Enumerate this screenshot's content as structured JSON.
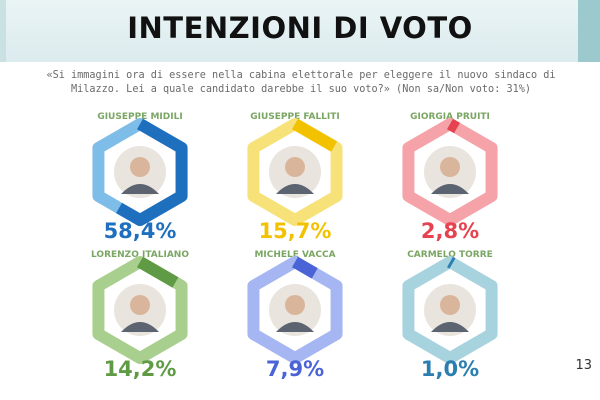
{
  "slide": {
    "title": "INTENZIONI DI VOTO",
    "question": "«Si immagini ora di essere nella cabina elettorale per eleggere il nuovo sindaco di Milazzo. Lei a quale candidato darebbe il suo voto?» (Non sa/Non voto: 31%)",
    "page_number": "13"
  },
  "chart_data": {
    "type": "donut-hexagon",
    "title": "INTENZIONI DI VOTO",
    "candidates": [
      {
        "name": "GIUSEPPE MIDILI",
        "value": 58.4,
        "label": "58,4%",
        "color": "#1f6fbf",
        "ring_color": "#7fbde9"
      },
      {
        "name": "GIUSEPPE FALLITI",
        "value": 15.7,
        "label": "15,7%",
        "color": "#f2c200",
        "ring_color": "#f7e27a"
      },
      {
        "name": "GIORGIA PRUITI",
        "value": 2.8,
        "label": "2,8%",
        "color": "#e4434f",
        "ring_color": "#f5a3a9"
      },
      {
        "name": "LORENZO ITALIANO",
        "value": 14.2,
        "label": "14,2%",
        "color": "#5f9a44",
        "ring_color": "#a9cf8f"
      },
      {
        "name": "MICHELE VACCA",
        "value": 7.9,
        "label": "7,9%",
        "color": "#4a63d6",
        "ring_color": "#a6b6f2"
      },
      {
        "name": "CARMELO TORRE",
        "value": 1.0,
        "label": "1,0%",
        "color": "#2b7fb0",
        "ring_color": "#a7d3df"
      }
    ]
  }
}
